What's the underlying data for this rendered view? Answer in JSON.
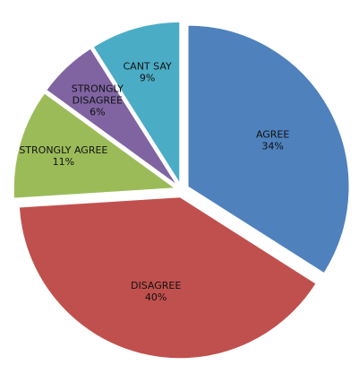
{
  "chart_data": {
    "type": "pie",
    "exploded": true,
    "start_angle_deg": 0,
    "direction": "clockwise",
    "slices": [
      {
        "label": "AGREE",
        "value": 34,
        "value_label": "34%",
        "color": "#4F81BD"
      },
      {
        "label": "DISAGREE",
        "value": 40,
        "value_label": "40%",
        "color": "#C0504D"
      },
      {
        "label": "STRONGLY AGREE",
        "value": 11,
        "value_label": "11%",
        "color": "#9BBB59"
      },
      {
        "label": "STRONGLY\nDISAGREE",
        "value": 6,
        "value_label": "6%",
        "color": "#8064A2"
      },
      {
        "label": "CANT SAY",
        "value": 9,
        "value_label": "9%",
        "color": "#4BACC6"
      }
    ]
  }
}
